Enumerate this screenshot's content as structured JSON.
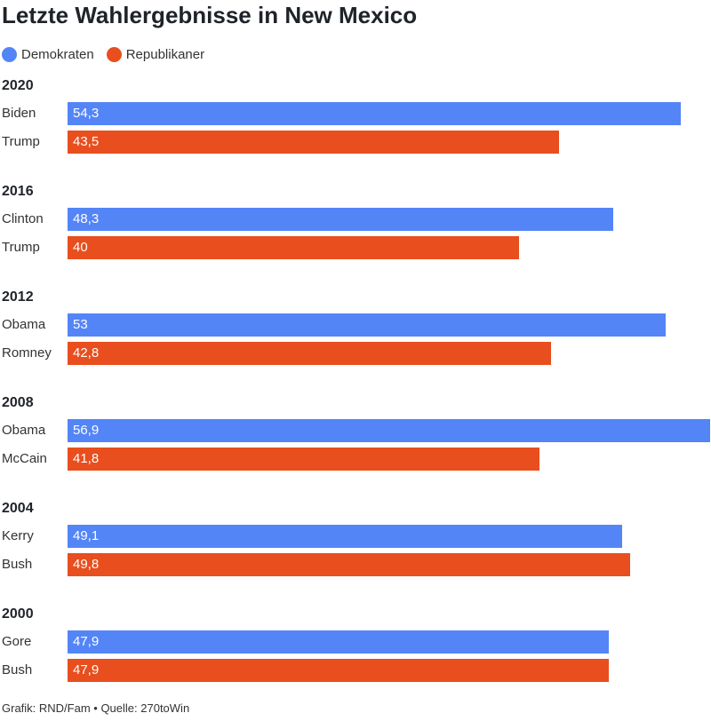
{
  "title": "Letzte Wahlergebnisse in New Mexico",
  "legend": [
    {
      "label": "Demokraten",
      "color": "#5485f7"
    },
    {
      "label": "Republikaner",
      "color": "#e84e1e"
    }
  ],
  "footer": "Grafik: RND/Fam • Quelle: 270toWin",
  "chart_data": {
    "type": "bar",
    "orientation": "horizontal",
    "title": "Letzte Wahlergebnisse in New Mexico",
    "xlim": [
      0,
      56.9
    ],
    "grid": false,
    "legend_position": "top-left",
    "series": [
      {
        "name": "Demokraten",
        "color": "#5485f7"
      },
      {
        "name": "Republikaner",
        "color": "#e84e1e"
      }
    ],
    "groups": [
      {
        "year": "2020",
        "rows": [
          {
            "candidate": "Biden",
            "party": "Demokraten",
            "value": 54.3,
            "label": "54,3"
          },
          {
            "candidate": "Trump",
            "party": "Republikaner",
            "value": 43.5,
            "label": "43,5"
          }
        ]
      },
      {
        "year": "2016",
        "rows": [
          {
            "candidate": "Clinton",
            "party": "Demokraten",
            "value": 48.3,
            "label": "48,3"
          },
          {
            "candidate": "Trump",
            "party": "Republikaner",
            "value": 40,
            "label": "40"
          }
        ]
      },
      {
        "year": "2012",
        "rows": [
          {
            "candidate": "Obama",
            "party": "Demokraten",
            "value": 53,
            "label": "53"
          },
          {
            "candidate": "Romney",
            "party": "Republikaner",
            "value": 42.8,
            "label": "42,8"
          }
        ]
      },
      {
        "year": "2008",
        "rows": [
          {
            "candidate": "Obama",
            "party": "Demokraten",
            "value": 56.9,
            "label": "56,9"
          },
          {
            "candidate": "McCain",
            "party": "Republikaner",
            "value": 41.8,
            "label": "41,8"
          }
        ]
      },
      {
        "year": "2004",
        "rows": [
          {
            "candidate": "Kerry",
            "party": "Demokraten",
            "value": 49.1,
            "label": "49,1"
          },
          {
            "candidate": "Bush",
            "party": "Republikaner",
            "value": 49.8,
            "label": "49,8"
          }
        ]
      },
      {
        "year": "2000",
        "rows": [
          {
            "candidate": "Gore",
            "party": "Demokraten",
            "value": 47.9,
            "label": "47,9"
          },
          {
            "candidate": "Bush",
            "party": "Republikaner",
            "value": 47.9,
            "label": "47,9"
          }
        ]
      }
    ]
  }
}
